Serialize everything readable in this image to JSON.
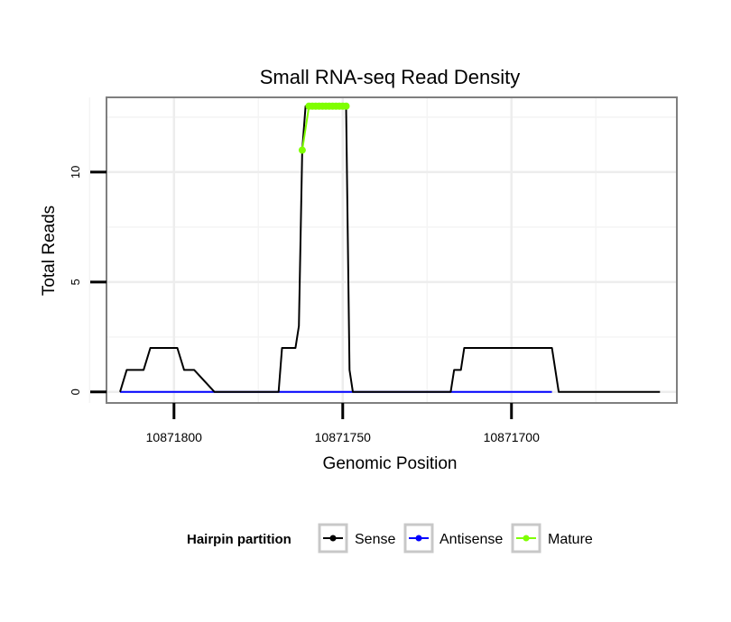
{
  "chart_data": {
    "type": "line",
    "title": "Small RNA-seq Read Density",
    "xlabel": "Genomic Position",
    "ylabel": "Total Reads",
    "xlim": [
      10871820,
      10871651
    ],
    "ylim": [
      -0.5,
      13.4
    ],
    "x_reversed": true,
    "x_ticks": [
      10871800,
      10871750,
      10871700
    ],
    "x_tick_labels": [
      "10871800",
      "10871750",
      "10871700"
    ],
    "y_ticks": [
      0,
      5,
      10
    ],
    "y_tick_labels": [
      "0",
      "5",
      "10"
    ],
    "grid": true,
    "legend": {
      "title": "Hairpin partition",
      "position": "bottom",
      "entries": [
        {
          "label": "Sense",
          "color": "#000000"
        },
        {
          "label": "Antisense",
          "color": "#0000ff"
        },
        {
          "label": "Mature",
          "color": "#7fff00"
        }
      ]
    },
    "series": [
      {
        "name": "Sense",
        "color": "#000000",
        "x": [
          10871816,
          10871814,
          10871809,
          10871807,
          10871799,
          10871797,
          10871794,
          10871788,
          10871769,
          10871768,
          10871764,
          10871763,
          10871762,
          10871761,
          10871749,
          10871748,
          10871747,
          10871746,
          10871719,
          10871718,
          10871717,
          10871715,
          10871715,
          10871714,
          10871712,
          10871688,
          10871686,
          10871656
        ],
        "y": [
          0,
          1,
          1,
          2,
          2,
          1,
          1,
          0,
          0,
          2,
          2,
          3,
          11,
          13,
          13,
          1,
          0,
          0,
          0,
          0,
          1,
          1,
          1,
          2,
          2,
          2,
          0,
          0
        ]
      },
      {
        "name": "Antisense",
        "color": "#0000ff",
        "x": [
          10871816,
          10871688
        ],
        "y": [
          0,
          0
        ]
      },
      {
        "name": "Mature",
        "color": "#7fff00",
        "x": [
          10871762,
          10871760,
          10871759,
          10871758,
          10871757,
          10871756,
          10871755,
          10871754,
          10871753,
          10871752,
          10871751,
          10871750,
          10871749
        ],
        "y": [
          11,
          13,
          13,
          13,
          13,
          13,
          13,
          13,
          13,
          13,
          13,
          13,
          13
        ]
      }
    ]
  }
}
